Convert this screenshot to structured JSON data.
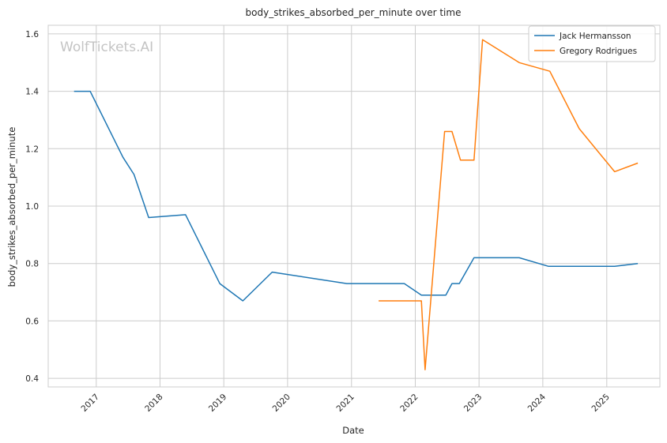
{
  "chart_data": {
    "type": "line",
    "title": "body_strikes_absorbed_per_minute over time",
    "xlabel": "Date",
    "ylabel": "body_strikes_absorbed_per_minute",
    "watermark": "WolfTickets.AI",
    "xlim": [
      "2016-04-01",
      "2025-11-01"
    ],
    "ylim": [
      0.37,
      1.63
    ],
    "x_ticks": [
      "2017",
      "2018",
      "2019",
      "2020",
      "2021",
      "2022",
      "2023",
      "2024",
      "2025"
    ],
    "y_ticks": [
      "0.4",
      "0.6",
      "0.8",
      "1.0",
      "1.2",
      "1.4",
      "1.6"
    ],
    "grid": true,
    "legend_position": "top-right",
    "series": [
      {
        "name": "Jack Hermansson",
        "color": "#1f77b4",
        "points": [
          {
            "x": "2016-08-27",
            "y": 1.4
          },
          {
            "x": "2016-11-27",
            "y": 1.4
          },
          {
            "x": "2017-06-03",
            "y": 1.17
          },
          {
            "x": "2017-08-05",
            "y": 1.11
          },
          {
            "x": "2017-10-28",
            "y": 0.96
          },
          {
            "x": "2018-05-27",
            "y": 0.97
          },
          {
            "x": "2018-12-09",
            "y": 0.73
          },
          {
            "x": "2019-04-20",
            "y": 0.67
          },
          {
            "x": "2019-10-05",
            "y": 0.77
          },
          {
            "x": "2020-12-05",
            "y": 0.73
          },
          {
            "x": "2021-06-05",
            "y": 0.73
          },
          {
            "x": "2021-10-30",
            "y": 0.73
          },
          {
            "x": "2022-02-05",
            "y": 0.69
          },
          {
            "x": "2022-06-25",
            "y": 0.69
          },
          {
            "x": "2022-07-30",
            "y": 0.73
          },
          {
            "x": "2022-09-10",
            "y": 0.73
          },
          {
            "x": "2022-12-03",
            "y": 0.82
          },
          {
            "x": "2023-08-19",
            "y": 0.82
          },
          {
            "x": "2024-02-03",
            "y": 0.79
          },
          {
            "x": "2025-02-15",
            "y": 0.79
          },
          {
            "x": "2025-06-28",
            "y": 0.8
          }
        ]
      },
      {
        "name": "Gregory Rodrigues",
        "color": "#ff7f0e",
        "points": [
          {
            "x": "2021-06-05",
            "y": 0.67
          },
          {
            "x": "2022-02-05",
            "y": 0.67
          },
          {
            "x": "2022-02-26",
            "y": 0.43
          },
          {
            "x": "2022-06-18",
            "y": 1.26
          },
          {
            "x": "2022-07-30",
            "y": 1.26
          },
          {
            "x": "2022-09-17",
            "y": 1.16
          },
          {
            "x": "2022-12-03",
            "y": 1.16
          },
          {
            "x": "2023-01-21",
            "y": 1.58
          },
          {
            "x": "2023-08-19",
            "y": 1.5
          },
          {
            "x": "2024-02-10",
            "y": 1.47
          },
          {
            "x": "2024-07-27",
            "y": 1.27
          },
          {
            "x": "2025-02-15",
            "y": 1.12
          },
          {
            "x": "2025-06-28",
            "y": 1.15
          }
        ]
      }
    ]
  }
}
